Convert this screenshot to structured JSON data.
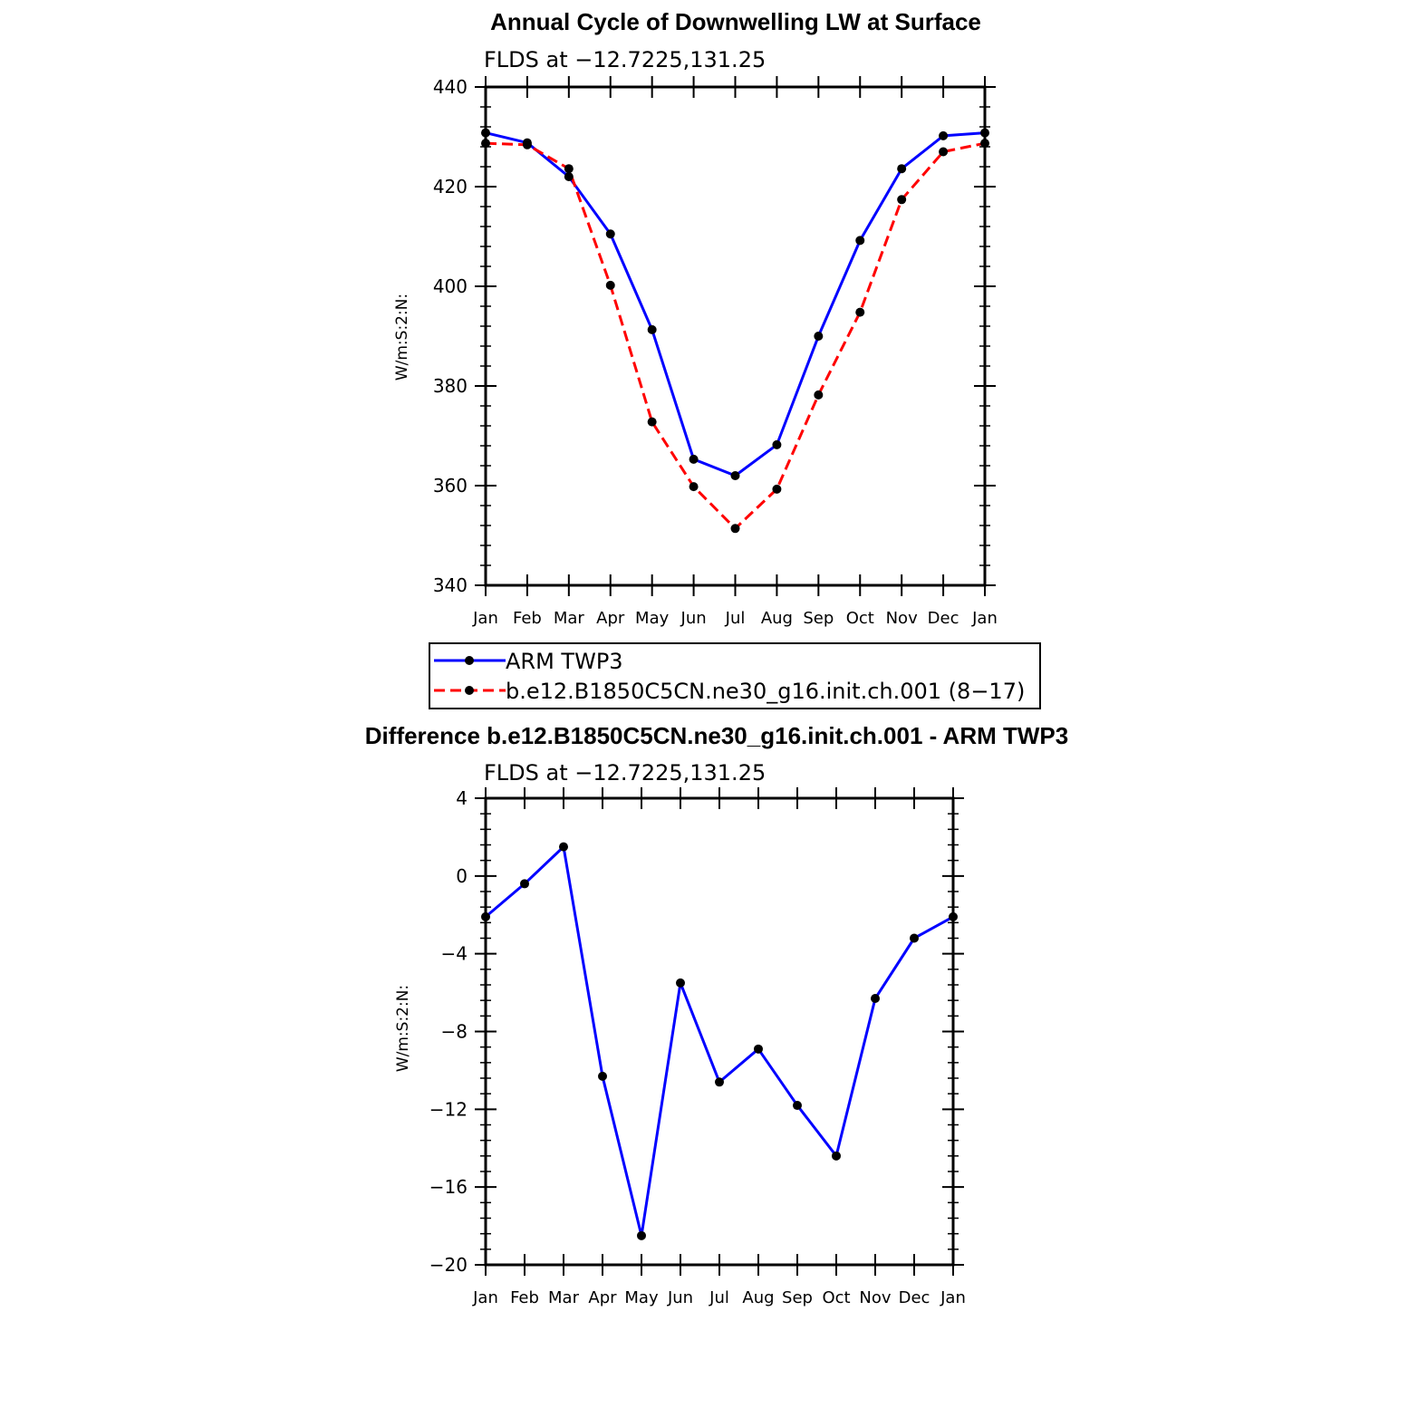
{
  "chart_data": [
    {
      "type": "line",
      "title": "Annual Cycle of Downwelling LW at Surface",
      "subtitle": "FLDS at −12.7225,131.25",
      "xlabel": "",
      "ylabel": "W/m:S:2:N:",
      "categories": [
        "Jan",
        "Feb",
        "Mar",
        "Apr",
        "May",
        "Jun",
        "Jul",
        "Aug",
        "Sep",
        "Oct",
        "Nov",
        "Dec",
        "Jan"
      ],
      "ylim": [
        340,
        440
      ],
      "yticks": [
        340,
        360,
        380,
        400,
        420,
        440
      ],
      "ytick_labels": [
        "340",
        "360",
        "380",
        "400",
        "420",
        "440"
      ],
      "grid": false,
      "legend": "bottom",
      "series": [
        {
          "name": "ARM TWP3",
          "color": "#0000ff",
          "dash": "solid",
          "values": [
            430.8,
            428.8,
            422.0,
            410.5,
            391.3,
            365.3,
            362.0,
            368.2,
            390.0,
            409.2,
            423.6,
            430.2,
            430.8
          ]
        },
        {
          "name": "b.e12.B1850C5CN.ne30_g16.init.ch.001 (8−17)",
          "color": "#ff0000",
          "dash": "dashed",
          "values": [
            428.7,
            428.4,
            423.6,
            400.2,
            372.8,
            359.8,
            351.4,
            359.3,
            378.2,
            394.8,
            417.4,
            427.0,
            428.7
          ]
        }
      ]
    },
    {
      "type": "line",
      "title": "Difference b.e12.B1850C5CN.ne30_g16.init.ch.001 - ARM TWP3",
      "subtitle": "FLDS at −12.7225,131.25",
      "xlabel": "",
      "ylabel": "W/m:S:2:N:",
      "categories": [
        "Jan",
        "Feb",
        "Mar",
        "Apr",
        "May",
        "Jun",
        "Jul",
        "Aug",
        "Sep",
        "Oct",
        "Nov",
        "Dec",
        "Jan"
      ],
      "ylim": [
        -20,
        4
      ],
      "yticks": [
        -20,
        -16,
        -12,
        -8,
        -4,
        0,
        4
      ],
      "ytick_labels": [
        "−20",
        "−16",
        "−12",
        "−8",
        "−4",
        "0",
        "4"
      ],
      "grid": false,
      "series": [
        {
          "color": "#0000ff",
          "dash": "solid",
          "values": [
            -2.1,
            -0.4,
            1.5,
            -10.3,
            -18.5,
            -5.5,
            -10.6,
            -8.9,
            -11.8,
            -14.4,
            -6.3,
            -3.2,
            -2.1
          ]
        }
      ]
    }
  ]
}
